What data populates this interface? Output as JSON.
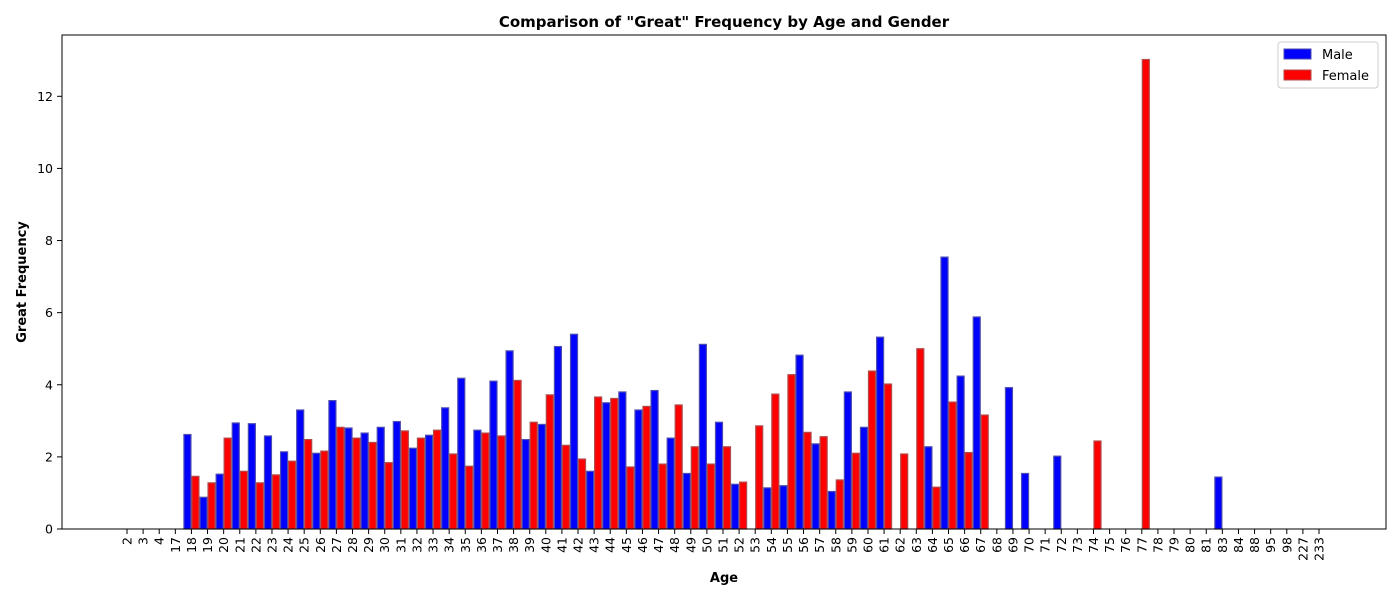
{
  "chart_data": {
    "type": "bar",
    "title": "Comparison of \"Great\" Frequency by Age and Gender",
    "xlabel": "Age",
    "ylabel": "Great Frequency",
    "ylim": [
      0,
      13.7
    ],
    "yticks": [
      "0",
      "2",
      "4",
      "6",
      "8",
      "10",
      "12"
    ],
    "grid": false,
    "legend_position": "top-right",
    "categories": [
      "2",
      "3",
      "4",
      "17",
      "18",
      "19",
      "20",
      "21",
      "22",
      "23",
      "24",
      "25",
      "26",
      "27",
      "28",
      "29",
      "30",
      "31",
      "32",
      "33",
      "34",
      "35",
      "36",
      "37",
      "38",
      "39",
      "40",
      "41",
      "42",
      "43",
      "44",
      "45",
      "46",
      "47",
      "48",
      "49",
      "50",
      "51",
      "52",
      "53",
      "54",
      "55",
      "56",
      "57",
      "58",
      "59",
      "60",
      "61",
      "62",
      "63",
      "64",
      "65",
      "66",
      "67",
      "68",
      "69",
      "70",
      "71",
      "72",
      "73",
      "74",
      "75",
      "76",
      "77",
      "78",
      "79",
      "80",
      "81",
      "83",
      "84",
      "88",
      "95",
      "98",
      "227",
      "233"
    ],
    "series": [
      {
        "name": "Male",
        "color": "#0000ff",
        "values": [
          0,
          0,
          0,
          0,
          2.62,
          0.88,
          1.52,
          2.94,
          2.92,
          2.58,
          2.14,
          3.3,
          2.1,
          3.56,
          2.8,
          2.66,
          2.82,
          2.98,
          2.24,
          2.6,
          3.36,
          4.18,
          2.74,
          4.1,
          4.94,
          2.48,
          2.9,
          5.06,
          5.4,
          1.6,
          3.5,
          3.8,
          3.3,
          3.84,
          2.52,
          1.54,
          5.12,
          2.96,
          1.24,
          0,
          1.14,
          1.2,
          4.82,
          2.36,
          1.04,
          3.8,
          2.82,
          5.32,
          0,
          0,
          2.28,
          7.54,
          4.24,
          5.88,
          0,
          3.92,
          1.54,
          0,
          2.02,
          0,
          0,
          0,
          0,
          0,
          0,
          0,
          0,
          0,
          1.44,
          0,
          0,
          0,
          0,
          0,
          0
        ]
      },
      {
        "name": "Female",
        "color": "#ff0000",
        "values": [
          0,
          0,
          0,
          0,
          1.46,
          1.28,
          2.52,
          1.6,
          1.28,
          1.5,
          1.88,
          2.48,
          2.16,
          2.82,
          2.52,
          2.4,
          1.84,
          2.72,
          2.52,
          2.74,
          2.08,
          1.74,
          2.66,
          2.58,
          4.12,
          2.96,
          3.72,
          2.32,
          1.94,
          3.66,
          3.62,
          1.72,
          3.4,
          1.8,
          3.44,
          2.28,
          1.8,
          2.28,
          1.3,
          2.86,
          3.74,
          4.28,
          2.68,
          2.56,
          1.36,
          2.1,
          4.38,
          4.02,
          2.08,
          5,
          1.16,
          3.52,
          2.12,
          3.16,
          0,
          0,
          0,
          0,
          0,
          0,
          2.44,
          0,
          0,
          13.02,
          0,
          0,
          0,
          0,
          0,
          0,
          0,
          0,
          0,
          0,
          0
        ]
      }
    ]
  }
}
